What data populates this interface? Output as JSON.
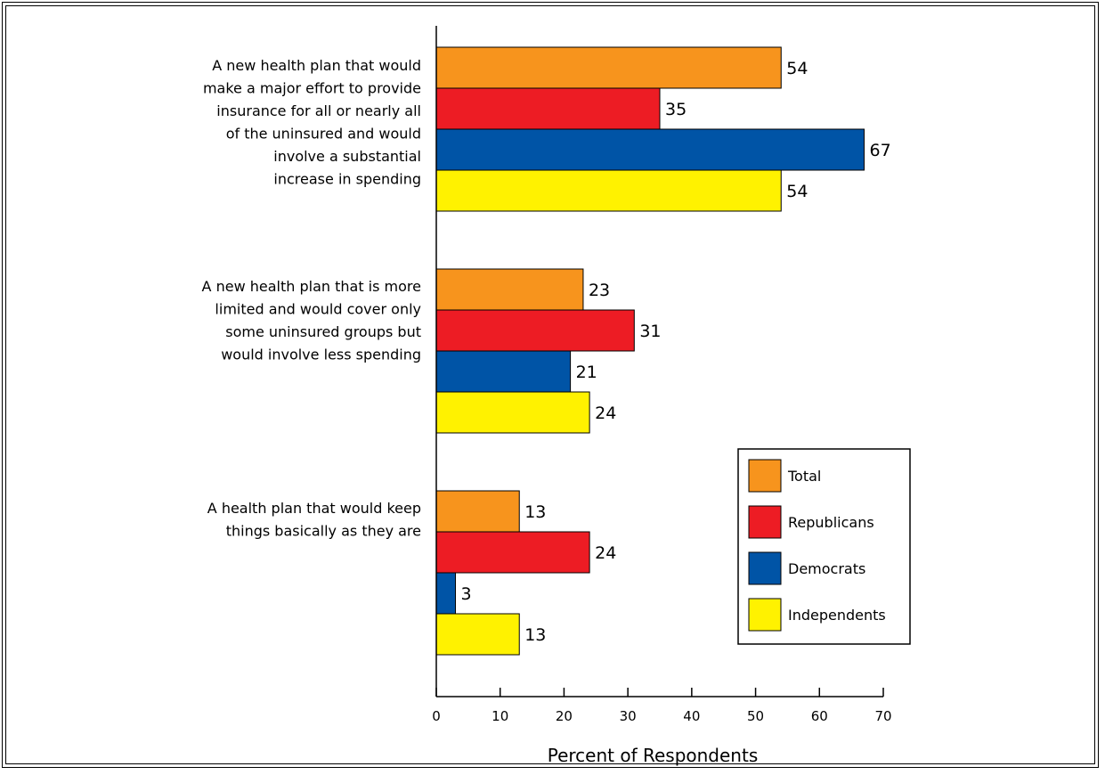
{
  "chart_data": {
    "type": "bar",
    "orientation": "horizontal",
    "categories": [
      [
        "A new health plan that would",
        "make a major effort to provide",
        "insurance for all or nearly all",
        "of the uninsured and would",
        "involve a substantial",
        "increase in spending"
      ],
      [
        "A new health plan that is more",
        "limited and would cover only",
        "some uninsured groups but",
        "would involve less spending"
      ],
      [
        "A health plan that would keep",
        "things basically as they are"
      ]
    ],
    "series": [
      {
        "name": "Total",
        "color": "#F7941D",
        "values": [
          54,
          23,
          13
        ]
      },
      {
        "name": "Republicans",
        "color": "#ED1C24",
        "values": [
          35,
          31,
          24
        ]
      },
      {
        "name": "Democrats",
        "color": "#0054A6",
        "values": [
          67,
          21,
          3
        ]
      },
      {
        "name": "Independents",
        "color": "#FFF200",
        "values": [
          54,
          24,
          13
        ]
      }
    ],
    "xlabel": "Percent of Respondents",
    "ylabel": "",
    "title": "",
    "xlim": [
      0,
      70
    ],
    "xticks": [
      0,
      10,
      20,
      30,
      40,
      50,
      60,
      70
    ],
    "grid": false,
    "legend": "bottom-right"
  }
}
